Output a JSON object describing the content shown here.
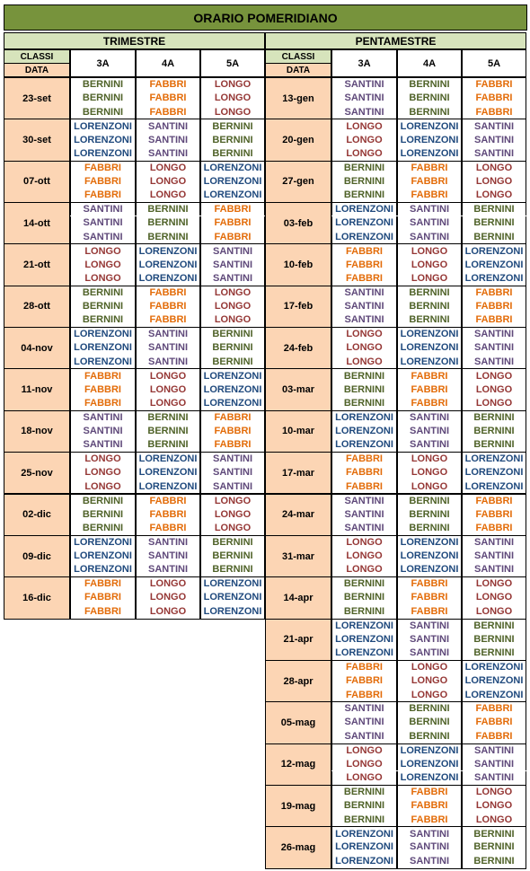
{
  "title": "ORARIO POMERIDIANO",
  "colors": {
    "BERNINI": "#4f6228",
    "FABBRI": "#e36c09",
    "LONGO": "#953735",
    "LORENZONI": "#1f497d",
    "SANTINI": "#5f497a"
  },
  "sections": [
    {
      "name": "TRIMESTRE",
      "header": {
        "classi": "CLASSI",
        "data": "DATA",
        "classes": [
          "3A",
          "4A",
          "5A"
        ]
      },
      "weeks": [
        {
          "date": "23-set",
          "rows": [
            [
              "BERNINI",
              "FABBRI",
              "LONGO"
            ],
            [
              "BERNINI",
              "FABBRI",
              "LONGO"
            ],
            [
              "BERNINI",
              "FABBRI",
              "LONGO"
            ]
          ]
        },
        {
          "date": "30-set",
          "rows": [
            [
              "LORENZONI",
              "SANTINI",
              "BERNINI"
            ],
            [
              "LORENZONI",
              "SANTINI",
              "BERNINI"
            ],
            [
              "LORENZONI",
              "SANTINI",
              "BERNINI"
            ]
          ]
        },
        {
          "date": "07-ott",
          "rows": [
            [
              "FABBRI",
              "LONGO",
              "LORENZONI"
            ],
            [
              "FABBRI",
              "LONGO",
              "LORENZONI"
            ],
            [
              "FABBRI",
              "LONGO",
              "LORENZONI"
            ]
          ]
        },
        {
          "date": "14-ott",
          "rows": [
            [
              "SANTINI",
              "BERNINI",
              "FABBRI"
            ],
            [
              "SANTINI",
              "BERNINI",
              "FABBRI"
            ],
            [
              "SANTINI",
              "BERNINI",
              "FABBRI"
            ]
          ]
        },
        {
          "date": "21-ott",
          "rows": [
            [
              "LONGO",
              "LORENZONI",
              "SANTINI"
            ],
            [
              "LONGO",
              "LORENZONI",
              "SANTINI"
            ],
            [
              "LONGO",
              "LORENZONI",
              "SANTINI"
            ]
          ]
        },
        {
          "date": "28-ott",
          "rows": [
            [
              "BERNINI",
              "FABBRI",
              "LONGO"
            ],
            [
              "BERNINI",
              "FABBRI",
              "LONGO"
            ],
            [
              "BERNINI",
              "FABBRI",
              "LONGO"
            ]
          ]
        },
        {
          "date": "04-nov",
          "rows": [
            [
              "LORENZONI",
              "SANTINI",
              "BERNINI"
            ],
            [
              "LORENZONI",
              "SANTINI",
              "BERNINI"
            ],
            [
              "LORENZONI",
              "SANTINI",
              "BERNINI"
            ]
          ]
        },
        {
          "date": "11-nov",
          "rows": [
            [
              "FABBRI",
              "LONGO",
              "LORENZONI"
            ],
            [
              "FABBRI",
              "LONGO",
              "LORENZONI"
            ],
            [
              "FABBRI",
              "LONGO",
              "LORENZONI"
            ]
          ]
        },
        {
          "date": "18-nov",
          "rows": [
            [
              "SANTINI",
              "BERNINI",
              "FABBRI"
            ],
            [
              "SANTINI",
              "BERNINI",
              "FABBRI"
            ],
            [
              "SANTINI",
              "BERNINI",
              "FABBRI"
            ]
          ]
        },
        {
          "date": "25-nov",
          "rows": [
            [
              "LONGO",
              "LORENZONI",
              "SANTINI"
            ],
            [
              "LONGO",
              "LORENZONI",
              "SANTINI"
            ],
            [
              "LONGO",
              "LORENZONI",
              "SANTINI"
            ]
          ]
        },
        {
          "date": "02-dic",
          "rows": [
            [
              "BERNINI",
              "FABBRI",
              "LONGO"
            ],
            [
              "BERNINI",
              "FABBRI",
              "LONGO"
            ],
            [
              "BERNINI",
              "FABBRI",
              "LONGO"
            ]
          ]
        },
        {
          "date": "09-dic",
          "rows": [
            [
              "LORENZONI",
              "SANTINI",
              "BERNINI"
            ],
            [
              "LORENZONI",
              "SANTINI",
              "BERNINI"
            ],
            [
              "LORENZONI",
              "SANTINI",
              "BERNINI"
            ]
          ]
        },
        {
          "date": "16-dic",
          "rows": [
            [
              "FABBRI",
              "LONGO",
              "LORENZONI"
            ],
            [
              "FABBRI",
              "LONGO",
              "LORENZONI"
            ],
            [
              "FABBRI",
              "LONGO",
              "LORENZONI"
            ]
          ]
        }
      ]
    },
    {
      "name": "PENTAMESTRE",
      "header": {
        "classi": "CLASSI",
        "data": "DATA",
        "classes": [
          "3A",
          "4A",
          "5A"
        ]
      },
      "weeks": [
        {
          "date": "13-gen",
          "rows": [
            [
              "SANTINI",
              "BERNINI",
              "FABBRI"
            ],
            [
              "SANTINI",
              "BERNINI",
              "FABBRI"
            ],
            [
              "SANTINI",
              "BERNINI",
              "FABBRI"
            ]
          ]
        },
        {
          "date": "20-gen",
          "rows": [
            [
              "LONGO",
              "LORENZONI",
              "SANTINI"
            ],
            [
              "LONGO",
              "LORENZONI",
              "SANTINI"
            ],
            [
              "LONGO",
              "LORENZONI",
              "SANTINI"
            ]
          ]
        },
        {
          "date": "27-gen",
          "rows": [
            [
              "BERNINI",
              "FABBRI",
              "LONGO"
            ],
            [
              "BERNINI",
              "FABBRI",
              "LONGO"
            ],
            [
              "BERNINI",
              "FABBRI",
              "LONGO"
            ]
          ]
        },
        {
          "date": "03-feb",
          "rows": [
            [
              "LORENZONI",
              "SANTINI",
              "BERNINI"
            ],
            [
              "LORENZONI",
              "SANTINI",
              "BERNINI"
            ],
            [
              "LORENZONI",
              "SANTINI",
              "BERNINI"
            ]
          ]
        },
        {
          "date": "10-feb",
          "rows": [
            [
              "FABBRI",
              "LONGO",
              "LORENZONI"
            ],
            [
              "FABBRI",
              "LONGO",
              "LORENZONI"
            ],
            [
              "FABBRI",
              "LONGO",
              "LORENZONI"
            ]
          ]
        },
        {
          "date": "17-feb",
          "rows": [
            [
              "SANTINI",
              "BERNINI",
              "FABBRI"
            ],
            [
              "SANTINI",
              "BERNINI",
              "FABBRI"
            ],
            [
              "SANTINI",
              "BERNINI",
              "FABBRI"
            ]
          ]
        },
        {
          "date": "24-feb",
          "rows": [
            [
              "LONGO",
              "LORENZONI",
              "SANTINI"
            ],
            [
              "LONGO",
              "LORENZONI",
              "SANTINI"
            ],
            [
              "LONGO",
              "LORENZONI",
              "SANTINI"
            ]
          ]
        },
        {
          "date": "03-mar",
          "rows": [
            [
              "BERNINI",
              "FABBRI",
              "LONGO"
            ],
            [
              "BERNINI",
              "FABBRI",
              "LONGO"
            ],
            [
              "BERNINI",
              "FABBRI",
              "LONGO"
            ]
          ]
        },
        {
          "date": "10-mar",
          "rows": [
            [
              "LORENZONI",
              "SANTINI",
              "BERNINI"
            ],
            [
              "LORENZONI",
              "SANTINI",
              "BERNINI"
            ],
            [
              "LORENZONI",
              "SANTINI",
              "BERNINI"
            ]
          ]
        },
        {
          "date": "17-mar",
          "rows": [
            [
              "FABBRI",
              "LONGO",
              "LORENZONI"
            ],
            [
              "FABBRI",
              "LONGO",
              "LORENZONI"
            ],
            [
              "FABBRI",
              "LONGO",
              "LORENZONI"
            ]
          ]
        },
        {
          "date": "24-mar",
          "rows": [
            [
              "SANTINI",
              "BERNINI",
              "FABBRI"
            ],
            [
              "SANTINI",
              "BERNINI",
              "FABBRI"
            ],
            [
              "SANTINI",
              "BERNINI",
              "FABBRI"
            ]
          ]
        },
        {
          "date": "31-mar",
          "rows": [
            [
              "LONGO",
              "LORENZONI",
              "SANTINI"
            ],
            [
              "LONGO",
              "LORENZONI",
              "SANTINI"
            ],
            [
              "LONGO",
              "LORENZONI",
              "SANTINI"
            ]
          ]
        },
        {
          "date": "14-apr",
          "rows": [
            [
              "BERNINI",
              "FABBRI",
              "LONGO"
            ],
            [
              "BERNINI",
              "FABBRI",
              "LONGO"
            ],
            [
              "BERNINI",
              "FABBRI",
              "LONGO"
            ]
          ]
        },
        {
          "date": "21-apr",
          "rows": [
            [
              "LORENZONI",
              "SANTINI",
              "BERNINI"
            ],
            [
              "LORENZONI",
              "SANTINI",
              "BERNINI"
            ],
            [
              "LORENZONI",
              "SANTINI",
              "BERNINI"
            ]
          ]
        },
        {
          "date": "28-apr",
          "rows": [
            [
              "FABBRI",
              "LONGO",
              "LORENZONI"
            ],
            [
              "FABBRI",
              "LONGO",
              "LORENZONI"
            ],
            [
              "FABBRI",
              "LONGO",
              "LORENZONI"
            ]
          ]
        },
        {
          "date": "05-mag",
          "rows": [
            [
              "SANTINI",
              "BERNINI",
              "FABBRI"
            ],
            [
              "SANTINI",
              "BERNINI",
              "FABBRI"
            ],
            [
              "SANTINI",
              "BERNINI",
              "FABBRI"
            ]
          ]
        },
        {
          "date": "12-mag",
          "rows": [
            [
              "LONGO",
              "LORENZONI",
              "SANTINI"
            ],
            [
              "LONGO",
              "LORENZONI",
              "SANTINI"
            ],
            [
              "LONGO",
              "LORENZONI",
              "SANTINI"
            ]
          ]
        },
        {
          "date": "19-mag",
          "rows": [
            [
              "BERNINI",
              "FABBRI",
              "LONGO"
            ],
            [
              "BERNINI",
              "FABBRI",
              "LONGO"
            ],
            [
              "BERNINI",
              "FABBRI",
              "LONGO"
            ]
          ]
        },
        {
          "date": "26-mag",
          "rows": [
            [
              "LORENZONI",
              "SANTINI",
              "BERNINI"
            ],
            [
              "LORENZONI",
              "SANTINI",
              "BERNINI"
            ],
            [
              "LORENZONI",
              "SANTINI",
              "BERNINI"
            ]
          ]
        }
      ]
    }
  ]
}
